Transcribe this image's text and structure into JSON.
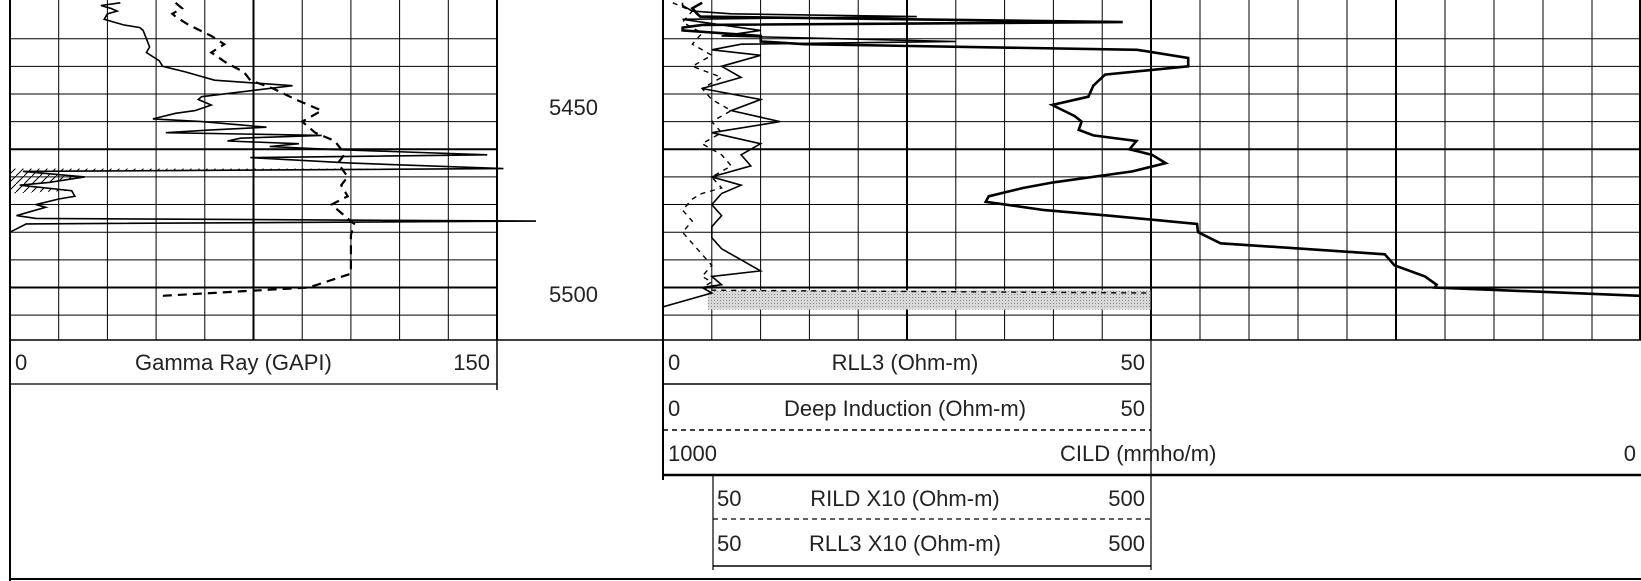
{
  "chart_data": {
    "type": "line",
    "title": "",
    "depth_unit": "ft",
    "depth_range": [
      5396,
      5519
    ],
    "depth_labels": [
      "5450",
      "5500"
    ],
    "tracks": [
      {
        "id": "track1",
        "header_label": "Gamma Ray (GAPI)",
        "min_label": "0",
        "max_label": "150",
        "xlim": [
          0,
          150
        ],
        "grid": "linear",
        "major_gridline_every": 50,
        "minor_gridline_every": 15,
        "series": [
          {
            "name": "Gamma Ray (GAPI)",
            "style": "solid",
            "color": "#000000",
            "x": [
              34,
              28,
              31,
              33,
              30,
              29,
              32,
              35,
              40,
              41,
              42,
              43,
              42,
              46,
              47,
              54,
              63,
              87,
              73,
              59,
              58,
              62,
              57,
              51,
              44,
              59,
              79,
              62,
              48,
              96,
              71,
              67,
              89,
              80,
              98,
              147,
              74,
              105,
              152,
              4,
              23,
              12,
              3,
              19,
              20,
              15,
              8,
              11,
              5,
              2,
              8,
              162,
              5,
              0,
              0,
              0,
              0,
              0,
              0,
              0,
              0,
              0
            ],
            "depth": [
              5397,
              5398,
              5399,
              5400,
              5401,
              5403,
              5404,
              5405,
              5406,
              5407,
              5410,
              5413,
              5415,
              5418,
              5420,
              5422,
              5425,
              5427,
              5429,
              5431,
              5432,
              5434,
              5436,
              5437,
              5439,
              5440,
              5442,
              5443,
              5444,
              5445,
              5446,
              5447,
              5448,
              5449,
              5450,
              5452,
              5453,
              5455,
              5457,
              5458,
              5460,
              5462,
              5463,
              5465,
              5467,
              5468,
              5470,
              5471,
              5473,
              5474,
              5475,
              5476,
              5477,
              5480,
              5485,
              5490,
              5495,
              5500,
              5505,
              5510,
              5515,
              5519
            ]
          },
          {
            "name": "Gamma Ray dashed companion curve",
            "style": "dashed",
            "color": "#000000",
            "x": [
              51,
              53,
              50,
              51,
              55,
              62,
              66,
              62,
              67,
              72,
              74,
              81,
              88,
              96,
              90,
              94,
              100,
              102,
              103,
              101,
              104,
              102,
              104,
              99,
              103,
              106,
              105,
              105,
              105,
              92,
              47
            ],
            "depth": [
              5397,
              5399,
              5401,
              5402,
              5405,
              5409,
              5412,
              5415,
              5419,
              5422,
              5425,
              5428,
              5432,
              5436,
              5440,
              5444,
              5447,
              5450,
              5452,
              5455,
              5460,
              5463,
              5467,
              5470,
              5474,
              5477,
              5481,
              5488,
              5495,
              5500,
              5503
            ]
          }
        ]
      },
      {
        "id": "track2",
        "header_labels": [
          {
            "label": "RLL3 (Ohm-m)",
            "min": "0",
            "max": "50",
            "line": "solid"
          },
          {
            "label": "Deep Induction (Ohm-m)",
            "min": "0",
            "max": "50",
            "line": "dashed"
          },
          {
            "label": "CILD (mmho/m)",
            "min": "1000",
            "max": "0",
            "line": "thick"
          },
          {
            "label": "RILD X10 (Ohm-m)",
            "min": "50",
            "max": "500",
            "line": "dashed"
          },
          {
            "label": "RLL3 X10 (Ohm-m)",
            "min": "50",
            "max": "500",
            "line": "solid"
          }
        ],
        "grid": "linear",
        "series": [
          {
            "name": "RLL3 (Ohm-m)",
            "style": "solid",
            "xlim": [
              0,
              50
            ],
            "x": [
              2,
              2,
              3,
              7,
              26,
              2,
              6,
              10,
              6,
              30,
              8,
              5,
              10,
              6,
              8,
              4,
              10,
              7,
              12,
              5,
              10,
              8,
              9,
              5,
              8,
              6,
              5,
              6,
              5,
              5,
              6,
              8,
              10,
              5,
              6,
              4,
              5,
              0,
              0
            ],
            "depth": [
              5397,
              5398,
              5400,
              5401,
              5402,
              5403,
              5405,
              5407,
              5409,
              5411,
              5412,
              5414,
              5416,
              5420,
              5424,
              5428,
              5432,
              5436,
              5440,
              5444,
              5448,
              5452,
              5456,
              5460,
              5463,
              5466,
              5470,
              5474,
              5478,
              5482,
              5486,
              5490,
              5494,
              5496,
              5499,
              5500,
              5502,
              5507,
              5511
            ]
          },
          {
            "name": "Deep Induction (Ohm-m)",
            "style": "dashed",
            "xlim": [
              0,
              50
            ],
            "x": [
              1,
              3,
              2,
              4,
              3,
              5,
              3,
              6,
              4,
              5,
              7,
              5,
              6,
              4,
              6,
              7,
              5,
              6,
              4,
              3,
              2,
              3,
              2,
              3,
              4,
              5,
              4,
              5,
              4,
              5,
              50
            ],
            "depth": [
              5397,
              5400,
              5404,
              5408,
              5412,
              5416,
              5420,
              5424,
              5428,
              5432,
              5436,
              5440,
              5444,
              5448,
              5452,
              5456,
              5460,
              5464,
              5466,
              5468,
              5472,
              5476,
              5480,
              5484,
              5488,
              5492,
              5496,
              5498,
              5500,
              5501,
              5502
            ]
          },
          {
            "name": "RLL3 X10 shading (stippled)",
            "style": "fill",
            "xlim": [
              50,
              500
            ],
            "x": [
              50,
              500
            ],
            "depth": [
              5501,
              5508
            ]
          },
          {
            "name": "CILD (mmho/m)",
            "style": "thick",
            "xlim": [
              1000,
              0
            ],
            "x": [
              960,
              970,
              965,
              962,
              530,
              960,
              980,
              980,
              900,
              900,
              855,
              515,
              463,
              463,
              548,
              560,
              565,
              602,
              579,
              572,
              575,
              560,
              516,
              523,
              500,
              486,
              520,
              601,
              632,
              667,
              670,
              610,
              545,
              454,
              453,
              430,
              262,
              252,
              221,
              209,
              211,
              1
            ],
            "depth": [
              5397,
              5399,
              5401,
              5402,
              5404,
              5405,
              5406,
              5407,
              5409,
              5411,
              5412,
              5414,
              5417,
              5420,
              5423,
              5427,
              5431,
              5434,
              5438,
              5440,
              5443,
              5445,
              5447,
              5450,
              5452,
              5455,
              5458,
              5462,
              5464,
              5467,
              5469,
              5472,
              5474,
              5477,
              5480,
              5484,
              5488,
              5492,
              5496,
              5499,
              5500,
              5503
            ]
          }
        ]
      }
    ]
  }
}
